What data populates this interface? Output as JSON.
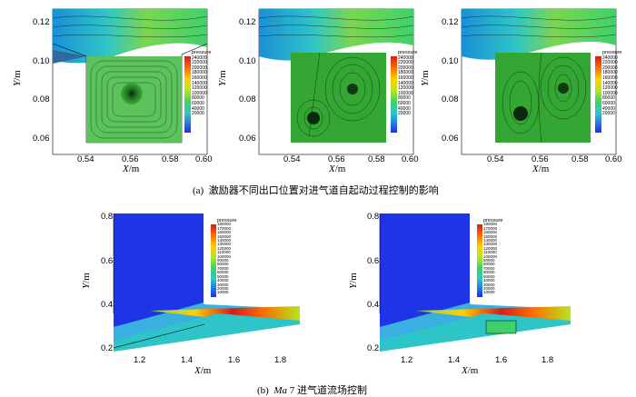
{
  "part_a": {
    "caption_label": "(a)",
    "caption_text": "激励器不同出口位置对进气道自起动过程控制的影响",
    "y_ticks": [
      "0.12",
      "0.10",
      "0.08",
      "0.06"
    ],
    "x_ticks": [
      "0.54",
      "0.56",
      "0.58",
      "0.60"
    ],
    "xlabel_var": "X",
    "xlabel_unit": "/m",
    "ylabel_var": "Y",
    "ylabel_unit": "/m",
    "legend_title": "pressure",
    "legend_levels": [
      "240000",
      "220000",
      "200000",
      "180000",
      "160000",
      "140000",
      "120000",
      "100000",
      "80000",
      "60000",
      "40000",
      "20000"
    ],
    "panels": [
      "panel-1",
      "panel-2",
      "panel-3"
    ]
  },
  "part_b": {
    "caption_label": "(b)",
    "caption_var": "Ma",
    "caption_text": " 7 进气道流场控制",
    "y_ticks": [
      "0.8",
      "0.6",
      "0.4",
      "0.2"
    ],
    "x_ticks": [
      "1.2",
      "1.4",
      "1.6",
      "1.8"
    ],
    "xlabel_var": "X",
    "xlabel_unit": "/m",
    "ylabel_var": "Y",
    "ylabel_unit": "/m",
    "legend_title": "pressure",
    "legend_levels": [
      "180000",
      "170000",
      "160000",
      "150000",
      "140000",
      "130000",
      "120000",
      "110000",
      "100000",
      "90000",
      "80000",
      "70000",
      "60000",
      "50000",
      "40000",
      "30000",
      "20000",
      "10000"
    ]
  },
  "colors": {
    "jet_top": "#d81b1b",
    "jet_mid": "#7bd650",
    "jet_low": "#1e2ee6",
    "cavity_green": "#2f9a2f"
  }
}
